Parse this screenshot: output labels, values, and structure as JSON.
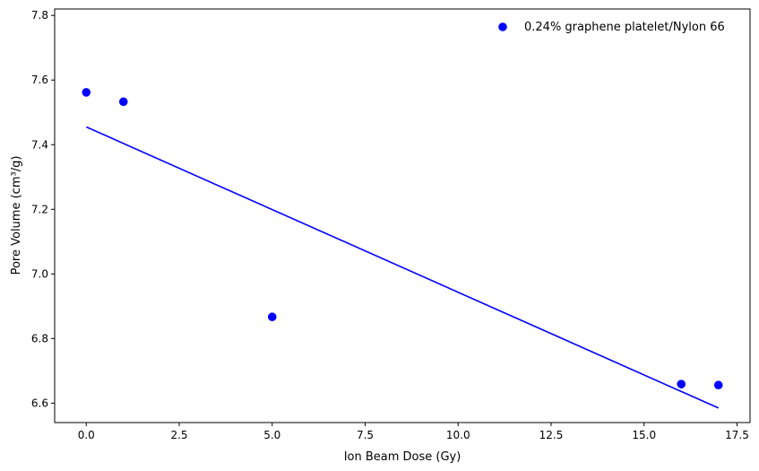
{
  "chart_data": {
    "type": "scatter",
    "title": "",
    "xlabel": "Ion Beam Dose (Gy)",
    "ylabel": "Pore Volume (cm³/g)",
    "xlim": [
      -0.85,
      17.85
    ],
    "ylim": [
      6.54,
      7.82
    ],
    "x_ticks": [
      0.0,
      2.5,
      5.0,
      7.5,
      10.0,
      12.5,
      15.0,
      17.5
    ],
    "x_tick_labels": [
      "0.0",
      "2.5",
      "5.0",
      "7.5",
      "10.0",
      "12.5",
      "15.0",
      "17.5"
    ],
    "y_ticks": [
      6.6,
      6.8,
      7.0,
      7.2,
      7.4,
      7.6,
      7.8
    ],
    "y_tick_labels": [
      "6.6",
      "6.8",
      "7.0",
      "7.2",
      "7.4",
      "7.6",
      "7.8"
    ],
    "grid": false,
    "legend_position": "top-right",
    "series": [
      {
        "name": "0.24% graphene platelet/Nylon 66",
        "type": "scatter",
        "color": "#0000ff",
        "x": [
          0,
          1,
          5,
          16,
          17
        ],
        "y": [
          7.562,
          7.533,
          6.867,
          6.659,
          6.656
        ]
      },
      {
        "type": "line",
        "color": "#0000ff",
        "x": [
          0,
          17
        ],
        "y": [
          7.455,
          6.585
        ]
      }
    ]
  }
}
